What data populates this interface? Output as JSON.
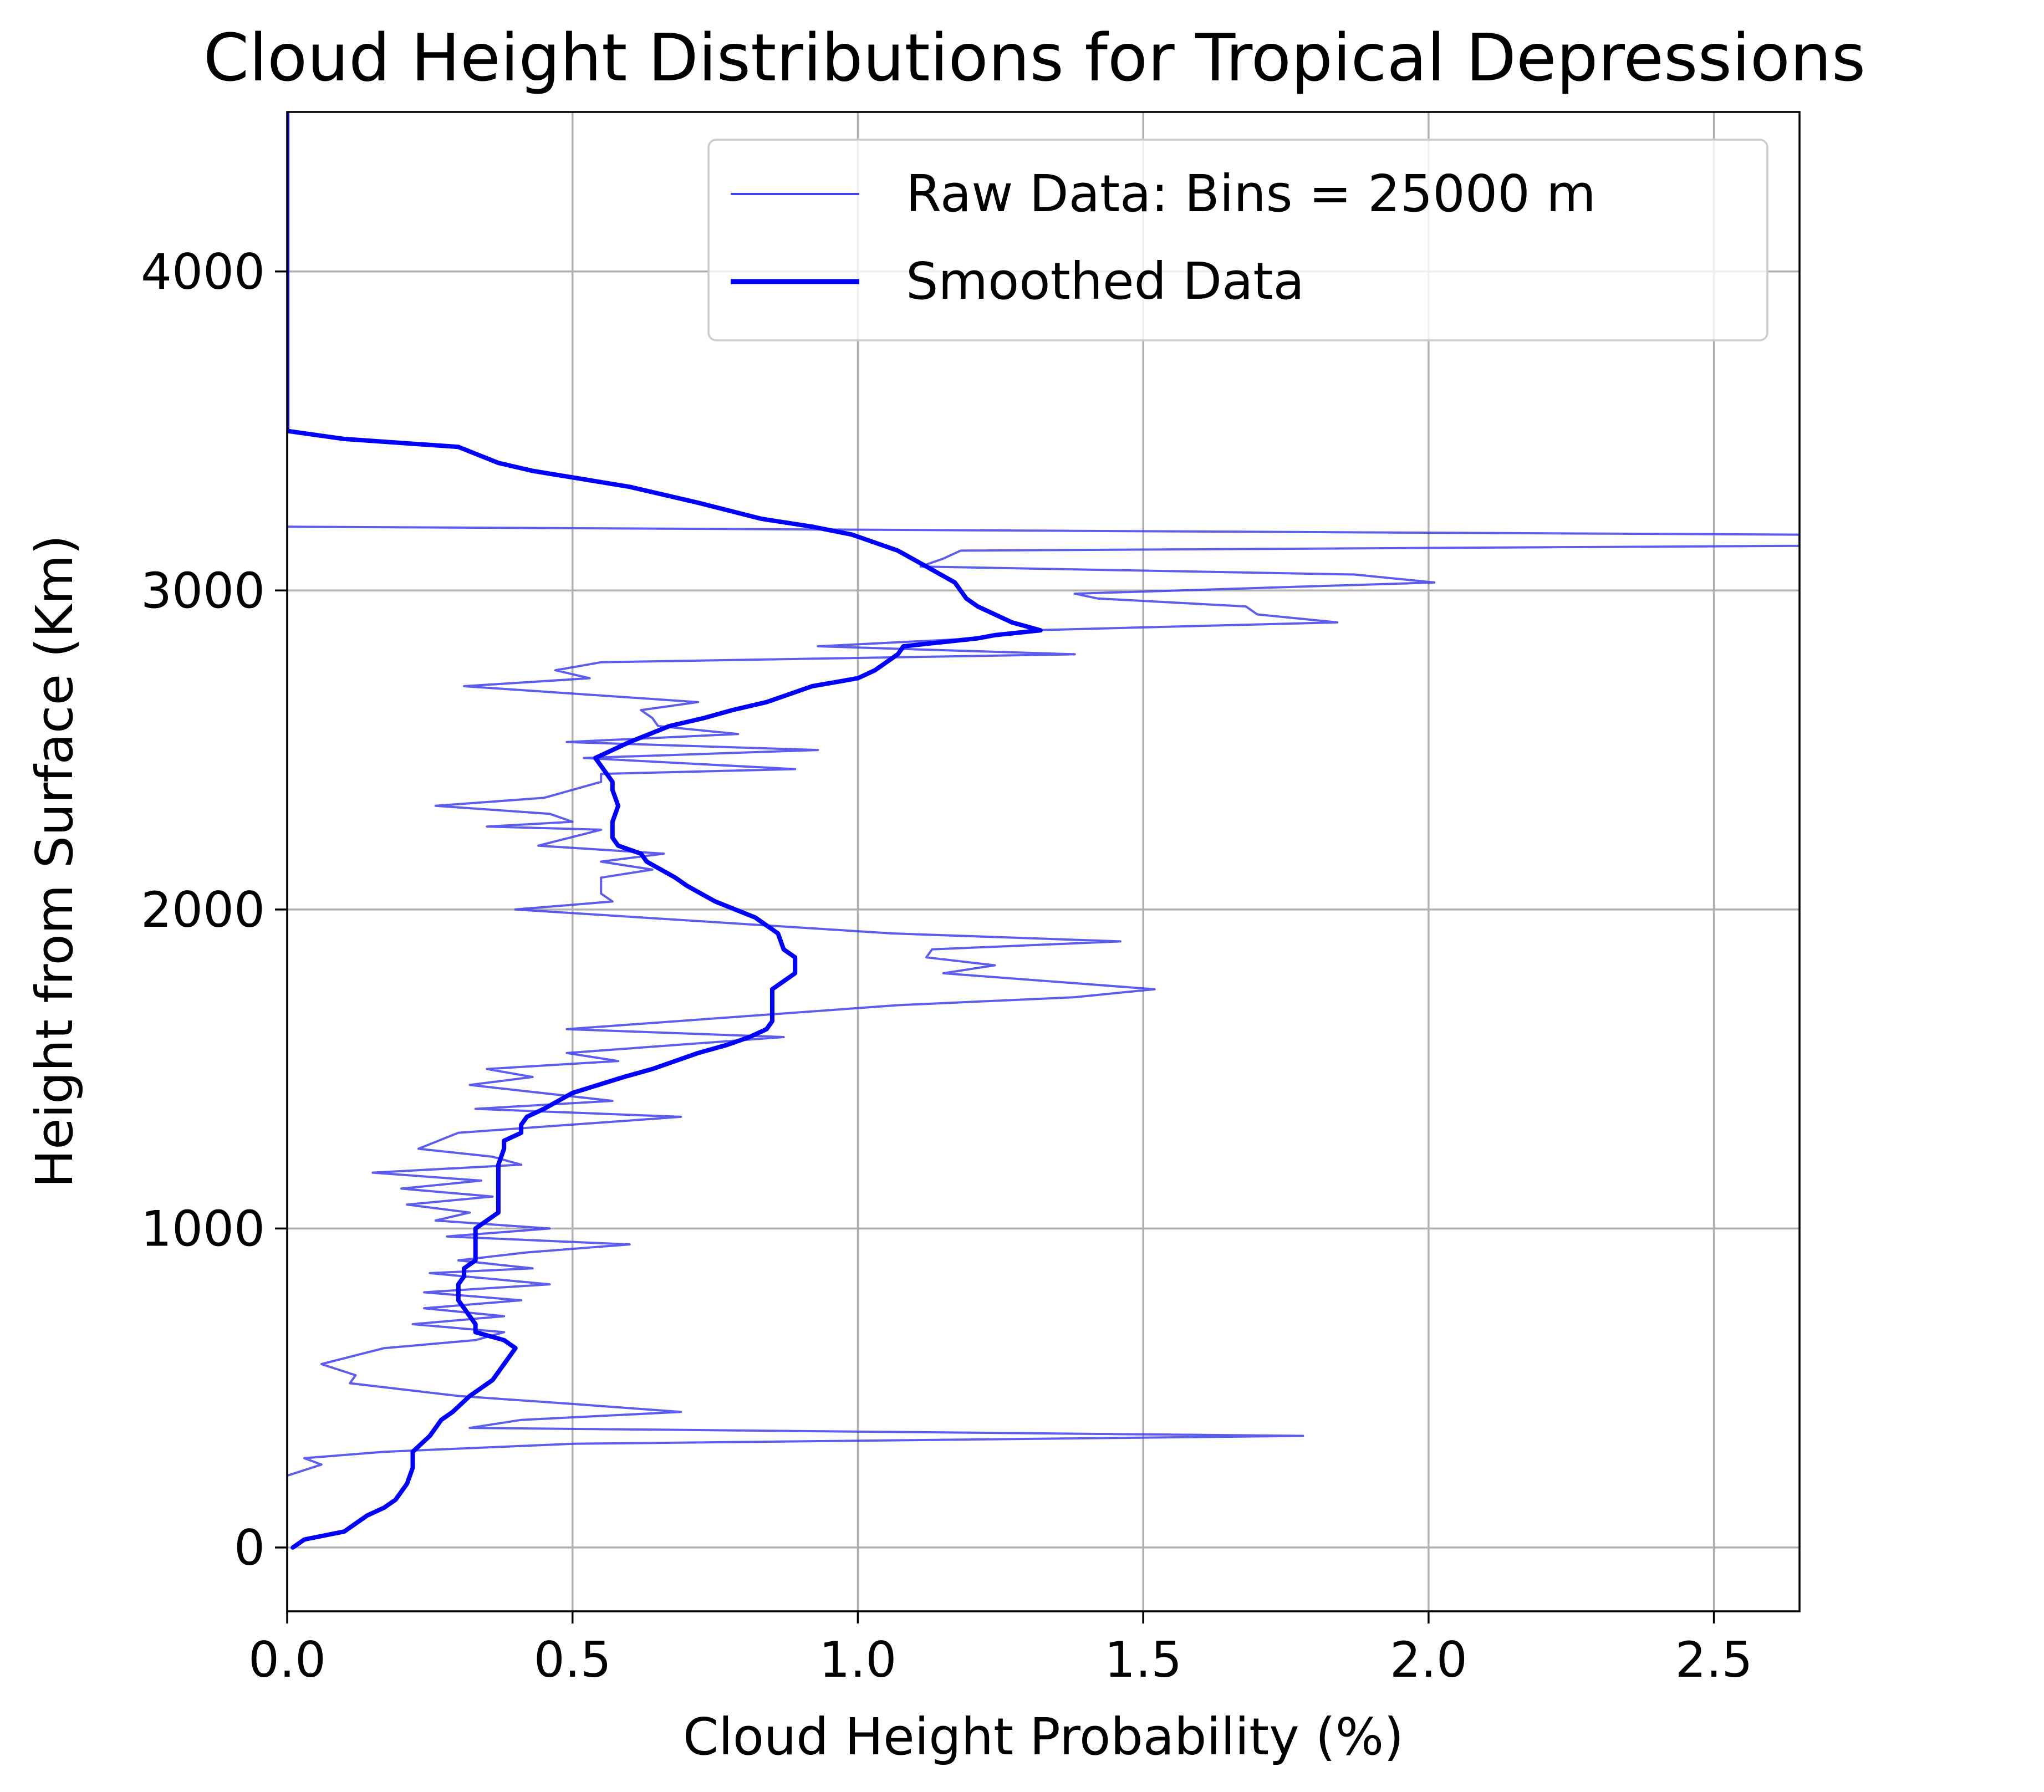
{
  "chart_data": {
    "type": "line",
    "title": "Cloud Height Distributions for Tropical Depressions",
    "xlabel": "Cloud Height Probability (%)",
    "ylabel": "Height from Surface (Km)",
    "xlim": [
      0,
      2.65
    ],
    "ylim": [
      -200,
      4500
    ],
    "xticks": [
      0.0,
      0.5,
      1.0,
      1.5,
      2.0,
      2.5
    ],
    "xtick_labels": [
      "0.0",
      "0.5",
      "1.0",
      "1.5",
      "2.0",
      "2.5"
    ],
    "yticks": [
      0,
      1000,
      2000,
      3000,
      4000
    ],
    "ytick_labels": [
      "0",
      "1000",
      "2000",
      "3000",
      "4000"
    ],
    "grid": true,
    "legend": {
      "placement": "upper right",
      "entries": [
        "Raw Data: Bins = 25000 m",
        "Smoothed Data"
      ]
    },
    "series": [
      {
        "name": "Raw Data: Bins = 25000 m",
        "style": "thin",
        "color": "#4040ee",
        "points": [
          [
            0.0,
            225
          ],
          [
            0.06,
            260
          ],
          [
            0.03,
            280
          ],
          [
            0.17,
            300
          ],
          [
            0.5,
            325
          ],
          [
            1.78,
            350
          ],
          [
            0.32,
            375
          ],
          [
            0.41,
            400
          ],
          [
            0.69,
            425
          ],
          [
            0.5,
            450
          ],
          [
            0.3,
            475
          ],
          [
            0.11,
            515
          ],
          [
            0.12,
            540
          ],
          [
            0.06,
            575
          ],
          [
            0.17,
            625
          ],
          [
            0.33,
            650
          ],
          [
            0.38,
            675
          ],
          [
            0.22,
            700
          ],
          [
            0.38,
            725
          ],
          [
            0.24,
            750
          ],
          [
            0.41,
            775
          ],
          [
            0.24,
            800
          ],
          [
            0.46,
            825
          ],
          [
            0.25,
            860
          ],
          [
            0.43,
            875
          ],
          [
            0.3,
            900
          ],
          [
            0.42,
            925
          ],
          [
            0.6,
            950
          ],
          [
            0.28,
            975
          ],
          [
            0.46,
            1000
          ],
          [
            0.26,
            1025
          ],
          [
            0.32,
            1050
          ],
          [
            0.21,
            1075
          ],
          [
            0.36,
            1100
          ],
          [
            0.2,
            1125
          ],
          [
            0.34,
            1150
          ],
          [
            0.15,
            1175
          ],
          [
            0.41,
            1200
          ],
          [
            0.36,
            1225
          ],
          [
            0.23,
            1250
          ],
          [
            0.3,
            1300
          ],
          [
            0.69,
            1350
          ],
          [
            0.33,
            1375
          ],
          [
            0.57,
            1400
          ],
          [
            0.32,
            1450
          ],
          [
            0.43,
            1475
          ],
          [
            0.35,
            1500
          ],
          [
            0.58,
            1525
          ],
          [
            0.49,
            1550
          ],
          [
            0.87,
            1600
          ],
          [
            0.49,
            1625
          ],
          [
            1.07,
            1700
          ],
          [
            1.38,
            1725
          ],
          [
            1.52,
            1750
          ],
          [
            1.15,
            1800
          ],
          [
            1.24,
            1825
          ],
          [
            1.12,
            1850
          ],
          [
            1.13,
            1875
          ],
          [
            1.46,
            1900
          ],
          [
            1.06,
            1925
          ],
          [
            0.4,
            2000
          ],
          [
            0.57,
            2025
          ],
          [
            0.55,
            2050
          ],
          [
            0.55,
            2100
          ],
          [
            0.64,
            2125
          ],
          [
            0.55,
            2150
          ],
          [
            0.66,
            2175
          ],
          [
            0.44,
            2200
          ],
          [
            0.55,
            2250
          ],
          [
            0.35,
            2260
          ],
          [
            0.5,
            2275
          ],
          [
            0.46,
            2300
          ],
          [
            0.26,
            2325
          ],
          [
            0.45,
            2350
          ],
          [
            0.55,
            2400
          ],
          [
            0.55,
            2425
          ],
          [
            0.89,
            2440
          ],
          [
            0.52,
            2475
          ],
          [
            0.93,
            2500
          ],
          [
            0.49,
            2525
          ],
          [
            0.79,
            2550
          ],
          [
            0.65,
            2575
          ],
          [
            0.64,
            2600
          ],
          [
            0.62,
            2625
          ],
          [
            0.72,
            2650
          ],
          [
            0.31,
            2700
          ],
          [
            0.53,
            2725
          ],
          [
            0.47,
            2750
          ],
          [
            0.55,
            2775
          ],
          [
            1.38,
            2800
          ],
          [
            0.93,
            2825
          ],
          [
            1.21,
            2850
          ],
          [
            1.3,
            2875
          ],
          [
            1.84,
            2900
          ],
          [
            1.7,
            2925
          ],
          [
            1.68,
            2950
          ],
          [
            1.42,
            2975
          ],
          [
            1.38,
            2990
          ],
          [
            2.01,
            3025
          ],
          [
            1.87,
            3050
          ],
          [
            1.11,
            3075
          ],
          [
            1.15,
            3100
          ],
          [
            1.18,
            3125
          ],
          [
            2.65,
            3140
          ],
          [
            2.65,
            3175
          ],
          [
            0.0,
            3200
          ]
        ]
      },
      {
        "name": "Smoothed Data",
        "style": "thick",
        "color": "#0000ff",
        "points": [
          [
            0.01,
            0
          ],
          [
            0.03,
            25
          ],
          [
            0.1,
            50
          ],
          [
            0.12,
            75
          ],
          [
            0.14,
            100
          ],
          [
            0.17,
            125
          ],
          [
            0.19,
            150
          ],
          [
            0.2,
            175
          ],
          [
            0.21,
            200
          ],
          [
            0.22,
            250
          ],
          [
            0.22,
            300
          ],
          [
            0.25,
            350
          ],
          [
            0.27,
            400
          ],
          [
            0.29,
            425
          ],
          [
            0.32,
            475
          ],
          [
            0.36,
            525
          ],
          [
            0.38,
            575
          ],
          [
            0.4,
            625
          ],
          [
            0.38,
            650
          ],
          [
            0.33,
            675
          ],
          [
            0.33,
            700
          ],
          [
            0.31,
            750
          ],
          [
            0.3,
            775
          ],
          [
            0.3,
            800
          ],
          [
            0.3,
            825
          ],
          [
            0.31,
            850
          ],
          [
            0.31,
            875
          ],
          [
            0.33,
            900
          ],
          [
            0.33,
            950
          ],
          [
            0.33,
            1000
          ],
          [
            0.35,
            1025
          ],
          [
            0.37,
            1050
          ],
          [
            0.37,
            1100
          ],
          [
            0.37,
            1175
          ],
          [
            0.37,
            1200
          ],
          [
            0.38,
            1250
          ],
          [
            0.38,
            1275
          ],
          [
            0.41,
            1300
          ],
          [
            0.41,
            1325
          ],
          [
            0.42,
            1350
          ],
          [
            0.45,
            1375
          ],
          [
            0.5,
            1425
          ],
          [
            0.59,
            1475
          ],
          [
            0.64,
            1500
          ],
          [
            0.72,
            1550
          ],
          [
            0.77,
            1575
          ],
          [
            0.81,
            1600
          ],
          [
            0.84,
            1625
          ],
          [
            0.85,
            1650
          ],
          [
            0.85,
            1750
          ],
          [
            0.89,
            1800
          ],
          [
            0.89,
            1850
          ],
          [
            0.87,
            1875
          ],
          [
            0.86,
            1925
          ],
          [
            0.82,
            1975
          ],
          [
            0.75,
            2025
          ],
          [
            0.7,
            2075
          ],
          [
            0.68,
            2100
          ],
          [
            0.63,
            2150
          ],
          [
            0.62,
            2175
          ],
          [
            0.58,
            2200
          ],
          [
            0.57,
            2225
          ],
          [
            0.57,
            2275
          ],
          [
            0.58,
            2325
          ],
          [
            0.57,
            2375
          ],
          [
            0.57,
            2400
          ],
          [
            0.55,
            2450
          ],
          [
            0.54,
            2475
          ],
          [
            0.6,
            2525
          ],
          [
            0.67,
            2575
          ],
          [
            0.73,
            2600
          ],
          [
            0.78,
            2625
          ],
          [
            0.84,
            2650
          ],
          [
            0.92,
            2700
          ],
          [
            1.0,
            2725
          ],
          [
            1.03,
            2750
          ],
          [
            1.07,
            2800
          ],
          [
            1.08,
            2825
          ],
          [
            1.21,
            2850
          ],
          [
            1.24,
            2860
          ],
          [
            1.32,
            2875
          ],
          [
            1.27,
            2900
          ],
          [
            1.21,
            2950
          ],
          [
            1.19,
            2975
          ],
          [
            1.17,
            3025
          ],
          [
            1.12,
            3075
          ],
          [
            1.07,
            3125
          ],
          [
            0.99,
            3175
          ],
          [
            0.92,
            3200
          ],
          [
            0.83,
            3225
          ],
          [
            0.72,
            3275
          ],
          [
            0.6,
            3325
          ],
          [
            0.43,
            3375
          ],
          [
            0.37,
            3400
          ],
          [
            0.3,
            3450
          ],
          [
            0.1,
            3475
          ],
          [
            0.0,
            3500
          ],
          [
            0.0,
            4500
          ]
        ]
      }
    ]
  }
}
